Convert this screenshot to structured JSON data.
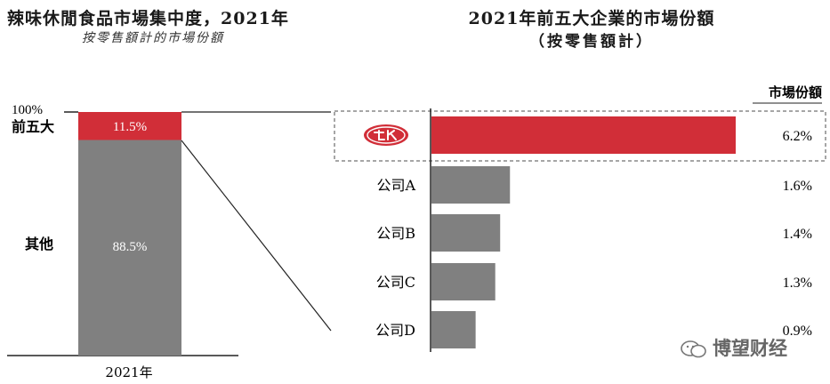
{
  "titles": {
    "left_title": "辣味休閒食品市場集中度，2021年",
    "left_subtitle": "按零售額計的市場份額",
    "right_title": "2021年前五大企業的市場份額",
    "right_subtitle": "（按零售額計）"
  },
  "colors": {
    "accent_red": "#d12e38",
    "bar_gray": "#808080",
    "dashed_box": "#888888"
  },
  "chart_data": [
    {
      "type": "bar",
      "stacked": true,
      "categories": [
        "2021年"
      ],
      "series": [
        {
          "name": "其他",
          "values": [
            88.5
          ]
        },
        {
          "name": "前五大",
          "values": [
            11.5
          ]
        }
      ],
      "data_labels": [
        "88.5%",
        "11.5%"
      ],
      "ytick_label": "100%",
      "ylim": [
        0,
        100
      ]
    },
    {
      "type": "bar",
      "orientation": "horizontal",
      "categories": [
        "卫龙",
        "公司A",
        "公司B",
        "公司C",
        "公司D"
      ],
      "values": [
        6.2,
        1.6,
        1.4,
        1.3,
        0.9
      ],
      "data_labels": [
        "6.2%",
        "1.6%",
        "1.4%",
        "1.3%",
        "0.9%"
      ],
      "value_header": "市場份額",
      "highlight_icon": "weilong-logo-icon",
      "xlim": [
        0,
        7
      ]
    }
  ],
  "watermark": {
    "icon": "wechat-logo-icon",
    "text": "博望财经"
  }
}
